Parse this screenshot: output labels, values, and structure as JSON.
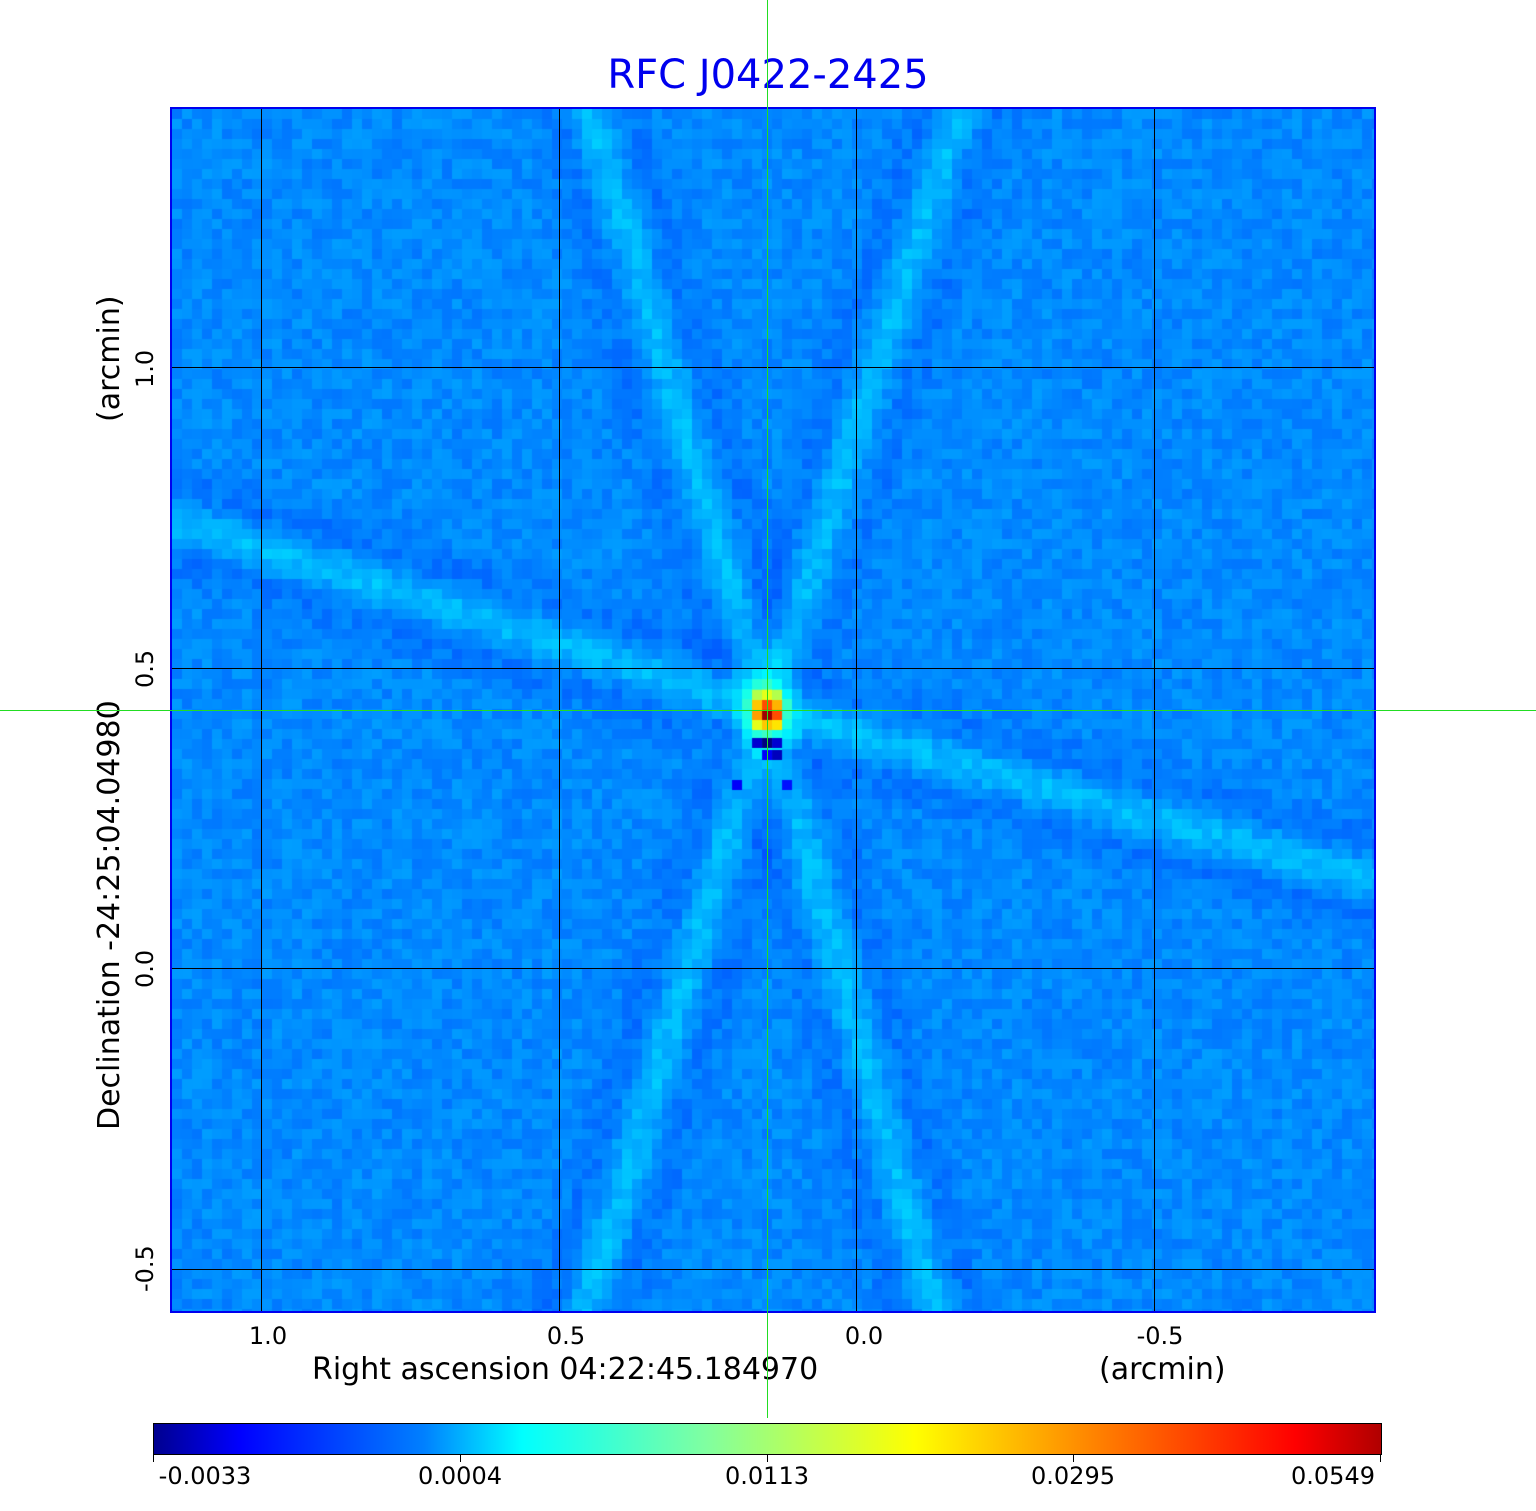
{
  "chart_data": {
    "type": "heatmap",
    "title": "RFC J0422-2425",
    "xlabel": "Right ascension  04:22:45.184970",
    "xunit": "(arcmin)",
    "ylabel": "Declination  -24:25:04.04980",
    "yunit": "(arcmin)",
    "xlim": [
      1.15,
      -0.87
    ],
    "ylim": [
      -0.57,
      1.43
    ],
    "x_ticks": [
      "1.0",
      "0.5",
      "0.0",
      "-0.5"
    ],
    "y_ticks": [
      "1.0",
      "0.5",
      "0.0",
      "-0.5"
    ],
    "grid": true,
    "colormap": "jet",
    "colorbar": {
      "ticks": [
        "-0.0033",
        "0.0004",
        "0.0113",
        "0.0295",
        "0.0549"
      ],
      "placement": "bottom"
    },
    "source_peak": {
      "x": 0.15,
      "y": 0.43
    },
    "crosshair": {
      "x": 0.15,
      "y": 0.43
    },
    "colors": {
      "title": "#0000ee",
      "frame": "#0000ee",
      "crosshair": "#22dd22",
      "grid": "#000000"
    }
  }
}
